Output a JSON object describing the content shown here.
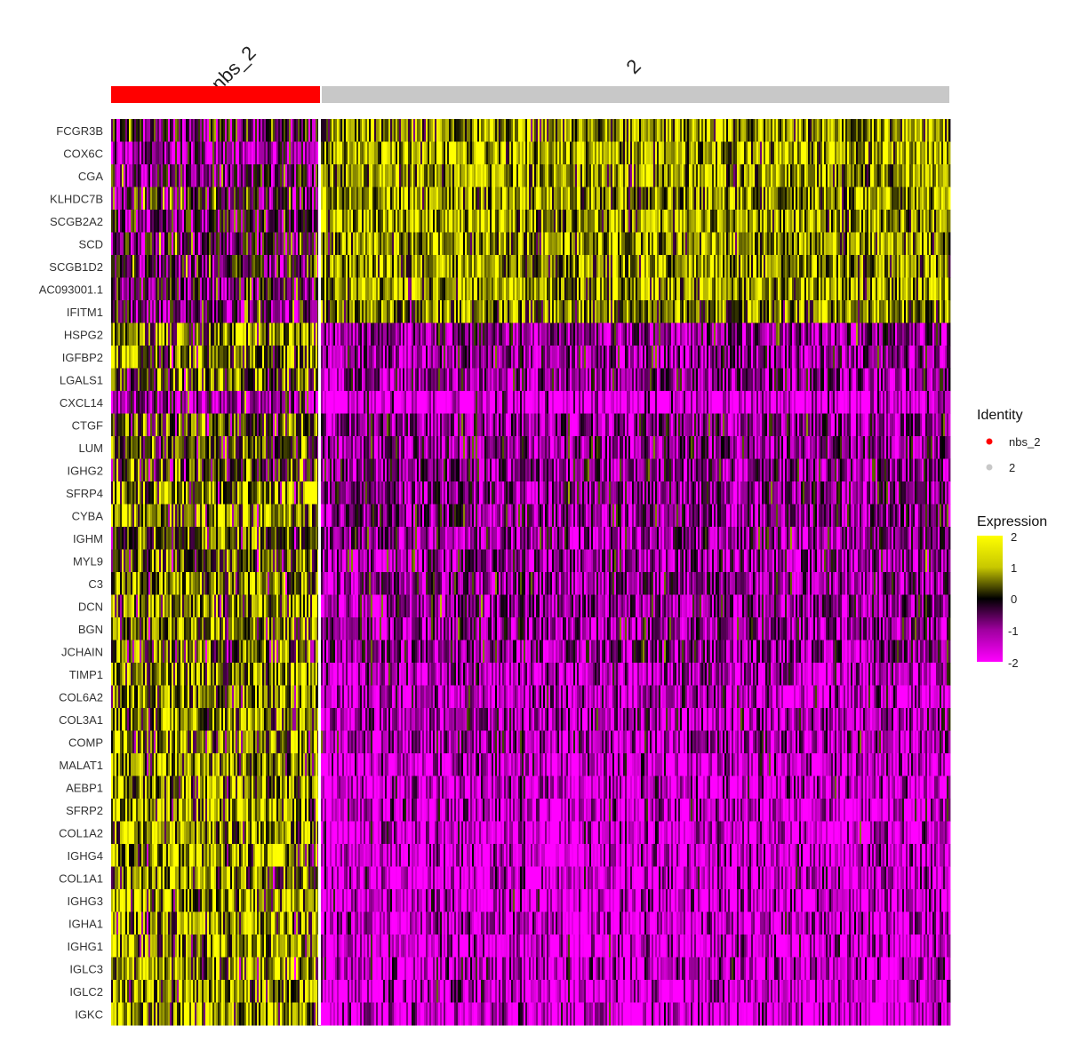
{
  "chart_data": {
    "type": "heatmap",
    "title": "",
    "groups": [
      {
        "name": "nbs_2",
        "color": "#ff0000",
        "fraction": 0.25
      },
      {
        "name": "2",
        "color": "#c8c8c8",
        "fraction": 0.75
      }
    ],
    "genes": [
      "FCGR3B",
      "COX6C",
      "CGA",
      "KLHDC7B",
      "SCGB2A2",
      "SCD",
      "SCGB1D2",
      "AC093001.1",
      "IFITM1",
      "HSPG2",
      "IGFBP2",
      "LGALS1",
      "CXCL14",
      "CTGF",
      "LUM",
      "IGHG2",
      "SFRP4",
      "CYBA",
      "IGHM",
      "MYL9",
      "C3",
      "DCN",
      "BGN",
      "JCHAIN",
      "TIMP1",
      "COL6A2",
      "COL3A1",
      "COMP",
      "MALAT1",
      "AEBP1",
      "SFRP2",
      "COL1A2",
      "IGHG4",
      "COL1A1",
      "IGHG3",
      "IGHA1",
      "IGHG1",
      "IGLC3",
      "IGLC2",
      "IGKC"
    ],
    "group_mean_expression": {
      "nbs_2": [
        -0.4,
        -1.2,
        -0.6,
        -0.3,
        -0.5,
        -0.4,
        -0.2,
        -0.5,
        -0.8,
        1.0,
        0.8,
        0.8,
        -1.3,
        0.4,
        0.3,
        0.2,
        1.0,
        1.0,
        0.5,
        0.2,
        0.8,
        0.8,
        0.8,
        0.5,
        1.0,
        1.0,
        1.0,
        1.0,
        1.0,
        1.1,
        1.1,
        1.1,
        1.1,
        1.1,
        1.1,
        1.1,
        1.1,
        1.1,
        1.1,
        1.1
      ],
      "2": [
        1.0,
        1.4,
        1.2,
        1.2,
        1.2,
        1.1,
        1.1,
        1.2,
        0.9,
        -1.0,
        -1.1,
        -1.1,
        -1.9,
        -1.0,
        -1.0,
        -1.0,
        -0.9,
        -0.9,
        -1.0,
        -1.1,
        -1.0,
        -1.0,
        -1.1,
        -1.0,
        -1.4,
        -1.4,
        -1.4,
        -1.3,
        -1.6,
        -1.6,
        -1.6,
        -1.7,
        -1.7,
        -1.7,
        -1.7,
        -1.6,
        -1.7,
        -1.6,
        -1.7,
        -1.7
      ]
    },
    "color_range": [
      -2,
      2
    ],
    "colorscale": {
      "low": "#ff00ff",
      "mid": "#000000",
      "high": "#ffff00"
    },
    "legend": {
      "identity_title": "Identity",
      "identity_entries": [
        "nbs_2",
        "2"
      ],
      "expression_title": "Expression",
      "expression_ticks": [
        "2",
        "1",
        "0",
        "-1",
        "-2"
      ]
    },
    "legend_position": "right"
  }
}
